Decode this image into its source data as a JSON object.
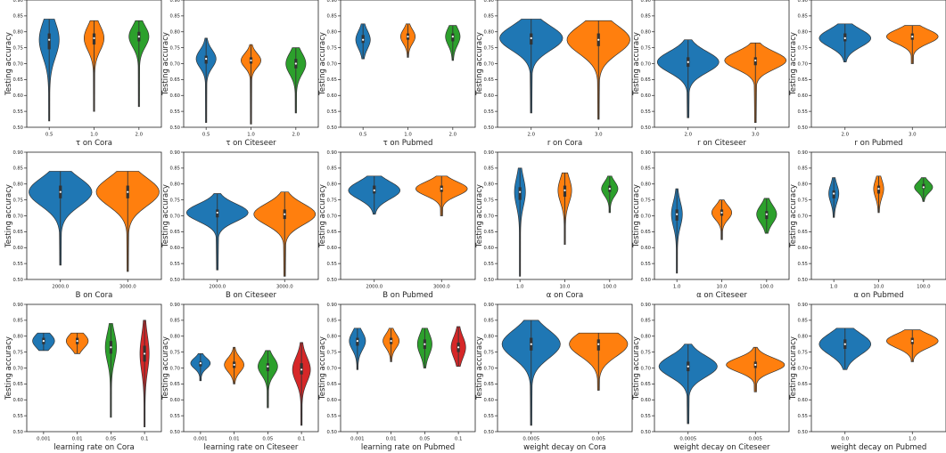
{
  "palette": [
    "#1f77b4",
    "#ff7f0e",
    "#2ca02c",
    "#d62728"
  ],
  "chart_data": [
    {
      "type": "violin",
      "xlabel": "τ on Cora",
      "ylabel": "Testing accuracy",
      "ylim": [
        0.5,
        0.9
      ],
      "yticks": [
        "0.50",
        "0.55",
        "0.60",
        "0.65",
        "0.70",
        "0.75",
        "0.80",
        "0.85",
        "0.90"
      ],
      "categories": [
        "0.5",
        "1.0",
        "2.0"
      ],
      "violins": [
        {
          "median": 0.775,
          "q1": 0.745,
          "q3": 0.795,
          "min": 0.52,
          "max": 0.84,
          "width": 0.42
        },
        {
          "median": 0.78,
          "q1": 0.76,
          "q3": 0.795,
          "min": 0.55,
          "max": 0.835,
          "width": 0.42
        },
        {
          "median": 0.785,
          "q1": 0.77,
          "q3": 0.8,
          "min": 0.565,
          "max": 0.835,
          "width": 0.42
        }
      ]
    },
    {
      "type": "violin",
      "xlabel": "τ on Citeseer",
      "ylabel": "Testing accuracy",
      "ylim": [
        0.5,
        0.9
      ],
      "yticks": [
        "0.50",
        "0.55",
        "0.60",
        "0.65",
        "0.70",
        "0.75",
        "0.80",
        "0.85",
        "0.90"
      ],
      "categories": [
        "0.5",
        "1.0",
        "2.0"
      ],
      "violins": [
        {
          "median": 0.715,
          "q1": 0.7,
          "q3": 0.725,
          "min": 0.515,
          "max": 0.78,
          "width": 0.42
        },
        {
          "median": 0.71,
          "q1": 0.7,
          "q3": 0.72,
          "min": 0.51,
          "max": 0.76,
          "width": 0.42
        },
        {
          "median": 0.7,
          "q1": 0.685,
          "q3": 0.715,
          "min": 0.545,
          "max": 0.75,
          "width": 0.42
        }
      ]
    },
    {
      "type": "violin",
      "xlabel": "τ on Pubmed",
      "ylabel": "Testing accuracy",
      "ylim": [
        0.5,
        0.9
      ],
      "yticks": [
        "0.50",
        "0.55",
        "0.60",
        "0.65",
        "0.70",
        "0.75",
        "0.80",
        "0.85",
        "0.90"
      ],
      "categories": [
        "0.5",
        "1.0",
        "2.0"
      ],
      "violins": [
        {
          "median": 0.775,
          "q1": 0.765,
          "q3": 0.79,
          "min": 0.715,
          "max": 0.825,
          "width": 0.3
        },
        {
          "median": 0.785,
          "q1": 0.775,
          "q3": 0.795,
          "min": 0.72,
          "max": 0.825,
          "width": 0.3
        },
        {
          "median": 0.785,
          "q1": 0.77,
          "q3": 0.795,
          "min": 0.71,
          "max": 0.82,
          "width": 0.3
        }
      ]
    },
    {
      "type": "violin",
      "xlabel": "r on Cora",
      "ylabel": "Testing accuracy",
      "ylim": [
        0.5,
        0.9
      ],
      "yticks": [
        "0.50",
        "0.55",
        "0.60",
        "0.65",
        "0.70",
        "0.75",
        "0.80",
        "0.85",
        "0.90"
      ],
      "categories": [
        "2.0",
        "3.0"
      ],
      "violins": [
        {
          "median": 0.78,
          "q1": 0.76,
          "q3": 0.795,
          "min": 0.545,
          "max": 0.84,
          "width": 0.92
        },
        {
          "median": 0.775,
          "q1": 0.755,
          "q3": 0.795,
          "min": 0.525,
          "max": 0.835,
          "width": 0.92
        }
      ]
    },
    {
      "type": "violin",
      "xlabel": "r on Citeseer",
      "ylabel": "Testing accuracy",
      "ylim": [
        0.5,
        0.9
      ],
      "yticks": [
        "0.50",
        "0.55",
        "0.60",
        "0.65",
        "0.70",
        "0.75",
        "0.80",
        "0.85",
        "0.90"
      ],
      "categories": [
        "2.0",
        "3.0"
      ],
      "violins": [
        {
          "median": 0.705,
          "q1": 0.69,
          "q3": 0.72,
          "min": 0.53,
          "max": 0.775,
          "width": 0.9
        },
        {
          "median": 0.71,
          "q1": 0.695,
          "q3": 0.72,
          "min": 0.515,
          "max": 0.765,
          "width": 0.9
        }
      ]
    },
    {
      "type": "violin",
      "xlabel": "r on Pubmed",
      "ylabel": "Testing accuracy",
      "ylim": [
        0.5,
        0.9
      ],
      "yticks": [
        "0.50",
        "0.55",
        "0.60",
        "0.65",
        "0.70",
        "0.75",
        "0.80",
        "0.85",
        "0.90"
      ],
      "categories": [
        "2.0",
        "3.0"
      ],
      "violins": [
        {
          "median": 0.78,
          "q1": 0.77,
          "q3": 0.795,
          "min": 0.705,
          "max": 0.825,
          "width": 0.75
        },
        {
          "median": 0.785,
          "q1": 0.775,
          "q3": 0.795,
          "min": 0.7,
          "max": 0.82,
          "width": 0.75
        }
      ]
    },
    {
      "type": "violin",
      "xlabel": "B on Cora",
      "ylabel": "Testing accuracy",
      "ylim": [
        0.5,
        0.9
      ],
      "yticks": [
        "0.50",
        "0.55",
        "0.60",
        "0.65",
        "0.70",
        "0.75",
        "0.80",
        "0.85",
        "0.90"
      ],
      "categories": [
        "2000.0",
        "3000.0"
      ],
      "violins": [
        {
          "median": 0.775,
          "q1": 0.755,
          "q3": 0.795,
          "min": 0.545,
          "max": 0.84,
          "width": 0.92
        },
        {
          "median": 0.775,
          "q1": 0.755,
          "q3": 0.795,
          "min": 0.525,
          "max": 0.84,
          "width": 0.92
        }
      ]
    },
    {
      "type": "violin",
      "xlabel": "B on Citeseer",
      "ylabel": "Testing accuracy",
      "ylim": [
        0.5,
        0.9
      ],
      "yticks": [
        "0.50",
        "0.55",
        "0.60",
        "0.65",
        "0.70",
        "0.75",
        "0.80",
        "0.85",
        "0.90"
      ],
      "categories": [
        "2000.0",
        "3000.0"
      ],
      "violins": [
        {
          "median": 0.71,
          "q1": 0.695,
          "q3": 0.72,
          "min": 0.53,
          "max": 0.77,
          "width": 0.9
        },
        {
          "median": 0.705,
          "q1": 0.69,
          "q3": 0.72,
          "min": 0.51,
          "max": 0.775,
          "width": 0.9
        }
      ]
    },
    {
      "type": "violin",
      "xlabel": "B on Pubmed",
      "ylabel": "Testing accuracy",
      "ylim": [
        0.5,
        0.9
      ],
      "yticks": [
        "0.50",
        "0.55",
        "0.60",
        "0.65",
        "0.70",
        "0.75",
        "0.80",
        "0.85",
        "0.90"
      ],
      "categories": [
        "2000.0",
        "3000.0"
      ],
      "violins": [
        {
          "median": 0.78,
          "q1": 0.77,
          "q3": 0.795,
          "min": 0.705,
          "max": 0.825,
          "width": 0.75
        },
        {
          "median": 0.785,
          "q1": 0.775,
          "q3": 0.795,
          "min": 0.7,
          "max": 0.825,
          "width": 0.75
        }
      ]
    },
    {
      "type": "violin",
      "xlabel": "α on Cora",
      "ylabel": "Testing accuracy",
      "ylim": [
        0.5,
        0.9
      ],
      "yticks": [
        "0.50",
        "0.55",
        "0.60",
        "0.65",
        "0.70",
        "0.75",
        "0.80",
        "0.85",
        "0.90"
      ],
      "categories": [
        "1.0",
        "10.0",
        "100.0"
      ],
      "violins": [
        {
          "median": 0.775,
          "q1": 0.75,
          "q3": 0.79,
          "min": 0.51,
          "max": 0.85,
          "width": 0.22
        },
        {
          "median": 0.78,
          "q1": 0.76,
          "q3": 0.795,
          "min": 0.61,
          "max": 0.835,
          "width": 0.28
        },
        {
          "median": 0.785,
          "q1": 0.775,
          "q3": 0.795,
          "min": 0.71,
          "max": 0.825,
          "width": 0.34
        }
      ]
    },
    {
      "type": "violin",
      "xlabel": "α on Citeseer",
      "ylabel": "Testing accuracy",
      "ylim": [
        0.5,
        0.9
      ],
      "yticks": [
        "0.50",
        "0.55",
        "0.60",
        "0.65",
        "0.70",
        "0.75",
        "0.80",
        "0.85",
        "0.90"
      ],
      "categories": [
        "1.0",
        "10.0",
        "100.0"
      ],
      "violins": [
        {
          "median": 0.705,
          "q1": 0.685,
          "q3": 0.72,
          "min": 0.52,
          "max": 0.785,
          "width": 0.22
        },
        {
          "median": 0.71,
          "q1": 0.7,
          "q3": 0.72,
          "min": 0.625,
          "max": 0.75,
          "width": 0.42
        },
        {
          "median": 0.705,
          "q1": 0.69,
          "q3": 0.715,
          "min": 0.645,
          "max": 0.755,
          "width": 0.42
        }
      ]
    },
    {
      "type": "violin",
      "xlabel": "α on Pubmed",
      "ylabel": "Testing accuracy",
      "ylim": [
        0.5,
        0.9
      ],
      "yticks": [
        "0.50",
        "0.55",
        "0.60",
        "0.65",
        "0.70",
        "0.75",
        "0.80",
        "0.85",
        "0.90"
      ],
      "categories": [
        "1.0",
        "10.0",
        "100.0"
      ],
      "violins": [
        {
          "median": 0.77,
          "q1": 0.755,
          "q3": 0.78,
          "min": 0.695,
          "max": 0.82,
          "width": 0.2
        },
        {
          "median": 0.785,
          "q1": 0.77,
          "q3": 0.795,
          "min": 0.71,
          "max": 0.825,
          "width": 0.2
        },
        {
          "median": 0.79,
          "q1": 0.785,
          "q3": 0.8,
          "min": 0.745,
          "max": 0.82,
          "width": 0.38
        }
      ]
    },
    {
      "type": "violin",
      "xlabel": "learning rate on Cora",
      "ylabel": "Testing accuracy",
      "ylim": [
        0.5,
        0.9
      ],
      "yticks": [
        "0.50",
        "0.55",
        "0.60",
        "0.65",
        "0.70",
        "0.75",
        "0.80",
        "0.85",
        "0.90"
      ],
      "categories": [
        "0.001",
        "0.01",
        "0.05",
        "0.1"
      ],
      "violins": [
        {
          "median": 0.785,
          "q1": 0.775,
          "q3": 0.795,
          "min": 0.755,
          "max": 0.81,
          "width": 0.62
        },
        {
          "median": 0.785,
          "q1": 0.775,
          "q3": 0.795,
          "min": 0.745,
          "max": 0.81,
          "width": 0.62
        },
        {
          "median": 0.765,
          "q1": 0.745,
          "q3": 0.785,
          "min": 0.545,
          "max": 0.84,
          "width": 0.3
        },
        {
          "median": 0.745,
          "q1": 0.72,
          "q3": 0.77,
          "min": 0.515,
          "max": 0.85,
          "width": 0.24
        }
      ]
    },
    {
      "type": "violin",
      "xlabel": "learning rate on Citeseer",
      "ylabel": "Testing accuracy",
      "ylim": [
        0.5,
        0.9
      ],
      "yticks": [
        "0.50",
        "0.55",
        "0.60",
        "0.65",
        "0.70",
        "0.75",
        "0.80",
        "0.85",
        "0.90"
      ],
      "categories": [
        "0.001",
        "0.01",
        "0.05",
        "0.1"
      ],
      "violins": [
        {
          "median": 0.715,
          "q1": 0.705,
          "q3": 0.72,
          "min": 0.66,
          "max": 0.745,
          "width": 0.55
        },
        {
          "median": 0.71,
          "q1": 0.7,
          "q3": 0.72,
          "min": 0.65,
          "max": 0.765,
          "width": 0.55
        },
        {
          "median": 0.705,
          "q1": 0.69,
          "q3": 0.715,
          "min": 0.575,
          "max": 0.755,
          "width": 0.55
        },
        {
          "median": 0.695,
          "q1": 0.68,
          "q3": 0.715,
          "min": 0.52,
          "max": 0.78,
          "width": 0.5
        }
      ]
    },
    {
      "type": "violin",
      "xlabel": "learning rate on Pubmed",
      "ylabel": "Testing accuracy",
      "ylim": [
        0.5,
        0.9
      ],
      "yticks": [
        "0.50",
        "0.55",
        "0.60",
        "0.65",
        "0.70",
        "0.75",
        "0.80",
        "0.85",
        "0.90"
      ],
      "categories": [
        "0.001",
        "0.01",
        "0.05",
        "0.1"
      ],
      "violins": [
        {
          "median": 0.785,
          "q1": 0.77,
          "q3": 0.795,
          "min": 0.695,
          "max": 0.825,
          "width": 0.45
        },
        {
          "median": 0.785,
          "q1": 0.775,
          "q3": 0.795,
          "min": 0.72,
          "max": 0.825,
          "width": 0.45
        },
        {
          "median": 0.775,
          "q1": 0.76,
          "q3": 0.79,
          "min": 0.7,
          "max": 0.825,
          "width": 0.4
        },
        {
          "median": 0.765,
          "q1": 0.75,
          "q3": 0.78,
          "min": 0.705,
          "max": 0.83,
          "width": 0.4
        }
      ]
    },
    {
      "type": "violin",
      "xlabel": "weight decay on Cora",
      "ylabel": "Testing accuracy",
      "ylim": [
        0.5,
        0.9
      ],
      "yticks": [
        "0.50",
        "0.55",
        "0.60",
        "0.65",
        "0.70",
        "0.75",
        "0.80",
        "0.85",
        "0.90"
      ],
      "categories": [
        "0.0005",
        "0.005"
      ],
      "violins": [
        {
          "median": 0.775,
          "q1": 0.755,
          "q3": 0.795,
          "min": 0.52,
          "max": 0.85,
          "width": 0.85
        },
        {
          "median": 0.775,
          "q1": 0.755,
          "q3": 0.79,
          "min": 0.63,
          "max": 0.81,
          "width": 0.85
        }
      ]
    },
    {
      "type": "violin",
      "xlabel": "weight decay on Citeseer",
      "ylabel": "Testing accuracy",
      "ylim": [
        0.5,
        0.9
      ],
      "yticks": [
        "0.50",
        "0.55",
        "0.60",
        "0.65",
        "0.70",
        "0.75",
        "0.80",
        "0.85",
        "0.90"
      ],
      "categories": [
        "0.0005",
        "0.005"
      ],
      "violins": [
        {
          "median": 0.705,
          "q1": 0.69,
          "q3": 0.72,
          "min": 0.525,
          "max": 0.775,
          "width": 0.85
        },
        {
          "median": 0.71,
          "q1": 0.7,
          "q3": 0.72,
          "min": 0.625,
          "max": 0.765,
          "width": 0.85
        }
      ]
    },
    {
      "type": "violin",
      "xlabel": "weight decay on Pubmed",
      "ylabel": "Testing accuracy",
      "ylim": [
        0.5,
        0.9
      ],
      "yticks": [
        "0.50",
        "0.55",
        "0.60",
        "0.65",
        "0.70",
        "0.75",
        "0.80",
        "0.85",
        "0.90"
      ],
      "categories": [
        "0.0",
        "1.0"
      ],
      "violins": [
        {
          "median": 0.775,
          "q1": 0.76,
          "q3": 0.79,
          "min": 0.695,
          "max": 0.825,
          "width": 0.75
        },
        {
          "median": 0.785,
          "q1": 0.775,
          "q3": 0.795,
          "min": 0.72,
          "max": 0.82,
          "width": 0.75
        }
      ]
    }
  ]
}
